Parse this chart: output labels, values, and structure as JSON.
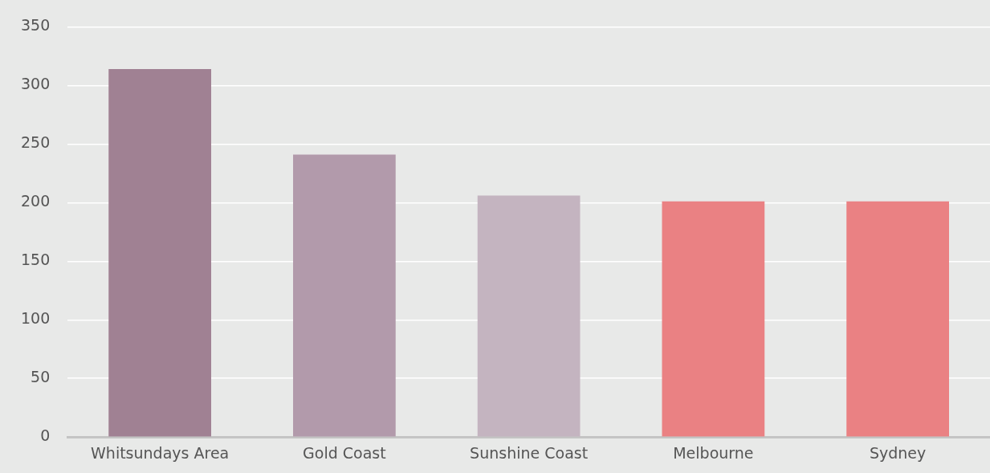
{
  "chart_data": {
    "type": "bar",
    "categories": [
      "Whitsundays Area",
      "Gold Coast",
      "Sunshine Coast",
      "Melbourne",
      "Sydney"
    ],
    "values": [
      314,
      241,
      206,
      201,
      201
    ],
    "colors": [
      "#a08193",
      "#b29aab",
      "#c4b4c0",
      "#ea8183",
      "#ea8183"
    ],
    "ylim": [
      0,
      350
    ],
    "yticks": [
      0,
      50,
      100,
      150,
      200,
      250,
      300,
      350
    ],
    "grid": "y",
    "legend": false
  }
}
